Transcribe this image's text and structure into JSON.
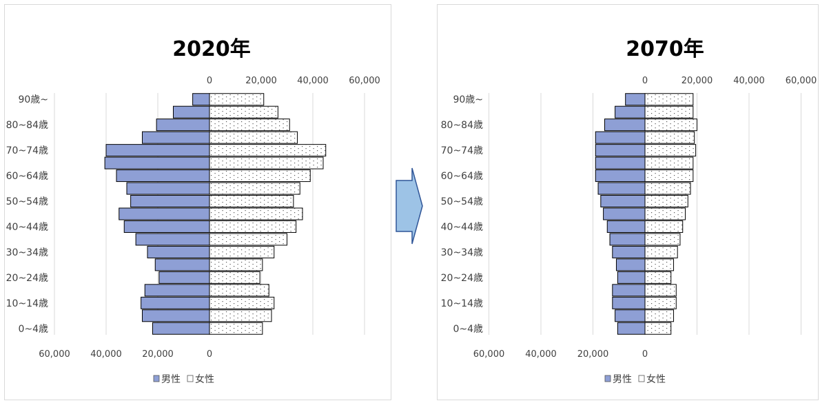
{
  "colors": {
    "male": "#8e9fd5",
    "female": "#ffffff",
    "bar_stroke": "#000000",
    "grid": "#d9d9d9",
    "arrow_fill": "#9dc3e6",
    "arrow_stroke": "#2f5597"
  },
  "chart_data": [
    {
      "type": "bar",
      "orientation": "horizontal-population-pyramid",
      "title": "2020年",
      "categories": [
        "0~4歳",
        "5~9歳",
        "10~14歳",
        "15~19歳",
        "20~24歳",
        "25~29歳",
        "30~34歳",
        "35~39歳",
        "40~44歳",
        "45~49歳",
        "50~54歳",
        "55~59歳",
        "60~64歳",
        "65~69歳",
        "70~74歳",
        "75~79歳",
        "80~84歳",
        "85~89歳",
        "90歳~"
      ],
      "category_labels_shown": [
        "0~4歳",
        "",
        "10~14歳",
        "",
        "20~24歳",
        "",
        "30~34歳",
        "",
        "40~44歳",
        "",
        "50~54歳",
        "",
        "60~64歳",
        "",
        "70~74歳",
        "",
        "80~84歳",
        "",
        "90歳~"
      ],
      "series": [
        {
          "name": "男性",
          "values": [
            22000,
            26000,
            26500,
            25000,
            19500,
            21000,
            24000,
            28500,
            33000,
            35000,
            30500,
            32000,
            36000,
            40500,
            40000,
            26000,
            20500,
            14000,
            6500
          ]
        },
        {
          "name": "女性",
          "values": [
            20500,
            24000,
            25000,
            23000,
            19500,
            20500,
            25000,
            30000,
            33500,
            36000,
            32500,
            35000,
            39000,
            44000,
            45000,
            34000,
            31000,
            26500,
            21000
          ]
        }
      ],
      "xlim": [
        -60000,
        60000
      ],
      "bottom_ticks": [
        "60,000",
        "40,000",
        "20,000",
        "0"
      ],
      "top_ticks": [
        "0",
        "20,000",
        "40,000",
        "60,000"
      ],
      "grid": true,
      "legend_position": "bottom"
    },
    {
      "type": "bar",
      "orientation": "horizontal-population-pyramid",
      "title": "2070年",
      "categories": [
        "0~4歳",
        "5~9歳",
        "10~14歳",
        "15~19歳",
        "20~24歳",
        "25~29歳",
        "30~34歳",
        "35~39歳",
        "40~44歳",
        "45~49歳",
        "50~54歳",
        "55~59歳",
        "60~64歳",
        "65~69歳",
        "70~74歳",
        "75~79歳",
        "80~84歳",
        "85~89歳",
        "90歳~"
      ],
      "category_labels_shown": [
        "0~4歳",
        "",
        "10~14歳",
        "",
        "20~24歳",
        "",
        "30~34歳",
        "",
        "40~44歳",
        "",
        "50~54歳",
        "",
        "60~64歳",
        "",
        "70~74歳",
        "",
        "80~84歳",
        "",
        "90歳~"
      ],
      "series": [
        {
          "name": "男性",
          "values": [
            10500,
            11500,
            12500,
            12500,
            10500,
            11000,
            12500,
            13500,
            14500,
            16000,
            17000,
            18000,
            19000,
            19000,
            19000,
            19000,
            15500,
            11500,
            7500
          ]
        },
        {
          "name": "女性",
          "values": [
            10000,
            11000,
            12000,
            12000,
            10000,
            11000,
            12500,
            13500,
            14500,
            15500,
            16500,
            17500,
            18500,
            18500,
            19500,
            19000,
            20000,
            18500,
            18500
          ]
        }
      ],
      "xlim": [
        -60000,
        60000
      ],
      "bottom_ticks": [
        "60,000",
        "40,000",
        "20,000",
        "0"
      ],
      "top_ticks": [
        "0",
        "20,000",
        "40,000",
        "60,000"
      ],
      "grid": true,
      "legend_position": "bottom"
    }
  ]
}
